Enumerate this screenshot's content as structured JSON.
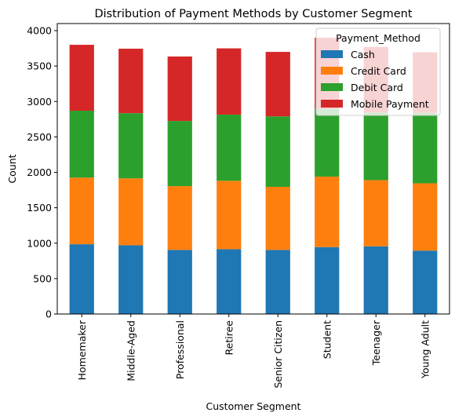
{
  "chart_data": {
    "type": "bar",
    "stacked": true,
    "title": "Distribution of Payment Methods by Customer Segment",
    "xlabel": "Customer Segment",
    "ylabel": "Count",
    "ylim": [
      0,
      4100
    ],
    "yticks": [
      0,
      500,
      1000,
      1500,
      2000,
      2500,
      3000,
      3500,
      4000
    ],
    "categories": [
      "Homemaker",
      "Middle-Aged",
      "Professional",
      "Retiree",
      "Senior Citizen",
      "Student",
      "Teenager",
      "Young Adult"
    ],
    "legend": {
      "title": "Payment_Method",
      "placement": "upper right"
    },
    "grid": false,
    "series": [
      {
        "name": "Cash",
        "color": "#1f77b4",
        "values": [
          985,
          970,
          905,
          915,
          905,
          945,
          955,
          895
        ]
      },
      {
        "name": "Credit Card",
        "color": "#ff7f0e",
        "values": [
          940,
          945,
          900,
          965,
          890,
          995,
          935,
          950
        ]
      },
      {
        "name": "Debit Card",
        "color": "#2ca02c",
        "values": [
          945,
          920,
          920,
          935,
          995,
          955,
          955,
          995
        ]
      },
      {
        "name": "Mobile Payment",
        "color": "#d62728",
        "values": [
          930,
          910,
          910,
          935,
          910,
          1005,
          925,
          855
        ]
      }
    ]
  }
}
